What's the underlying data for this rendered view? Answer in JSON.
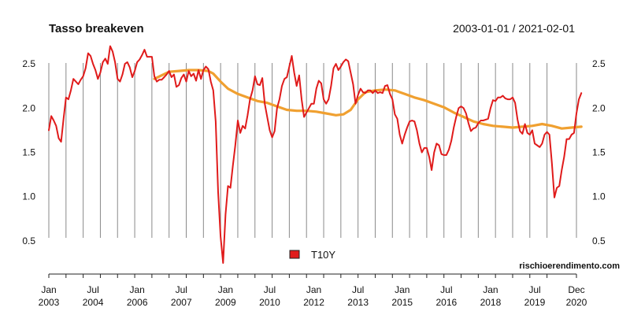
{
  "chart_data": {
    "type": "line",
    "title": "Tasso breakeven",
    "date_range": "2003-01-01 / 2021-02-01",
    "source": "rischioerendimento.com",
    "ylim": [
      0.25,
      2.75
    ],
    "yticks": [
      "0.5",
      "1.0",
      "1.5",
      "2.0",
      "2.5"
    ],
    "x_range": [
      "2003-01",
      "2020-12"
    ],
    "x_tick_labels": [
      {
        "month": "Jan",
        "year": "2003",
        "date": "2003-01"
      },
      {
        "month": "Jul",
        "year": "2004",
        "date": "2004-07"
      },
      {
        "month": "Jan",
        "year": "2006",
        "date": "2006-01"
      },
      {
        "month": "Jul",
        "year": "2007",
        "date": "2007-07"
      },
      {
        "month": "Jan",
        "year": "2009",
        "date": "2009-01"
      },
      {
        "month": "Jul",
        "year": "2010",
        "date": "2010-07"
      },
      {
        "month": "Jan",
        "year": "2012",
        "date": "2012-01"
      },
      {
        "month": "Jul",
        "year": "2013",
        "date": "2013-07"
      },
      {
        "month": "Jan",
        "year": "2015",
        "date": "2015-01"
      },
      {
        "month": "Jul",
        "year": "2016",
        "date": "2016-07"
      },
      {
        "month": "Jan",
        "year": "2018",
        "date": "2018-01"
      },
      {
        "month": "Jul",
        "year": "2019",
        "date": "2019-07"
      },
      {
        "month": "Dec",
        "year": "2020",
        "date": "2020-12"
      }
    ],
    "gridlines": [
      "2003-01",
      "2003-08",
      "2004-03",
      "2004-10",
      "2005-05",
      "2005-12",
      "2006-07",
      "2007-02",
      "2007-09",
      "2008-04",
      "2008-11",
      "2009-06",
      "2010-01",
      "2010-08",
      "2011-03",
      "2011-10",
      "2012-05",
      "2012-12",
      "2013-07",
      "2014-02",
      "2014-09",
      "2015-04",
      "2015-11",
      "2016-06",
      "2017-01",
      "2017-08",
      "2018-03",
      "2018-10",
      "2019-05",
      "2019-12",
      "2020-12"
    ],
    "grid": true,
    "legend_position": "bottom-center",
    "series": [
      {
        "name": "T10Y",
        "color": "#e01b1b",
        "points": [
          [
            "2003-01",
            1.75
          ],
          [
            "2003-02",
            1.91
          ],
          [
            "2003-03",
            1.86
          ],
          [
            "2003-04",
            1.8
          ],
          [
            "2003-05",
            1.66
          ],
          [
            "2003-06",
            1.62
          ],
          [
            "2003-07",
            1.88
          ],
          [
            "2003-08",
            2.12
          ],
          [
            "2003-09",
            2.1
          ],
          [
            "2003-10",
            2.2
          ],
          [
            "2003-11",
            2.33
          ],
          [
            "2003-12",
            2.3
          ],
          [
            "2004-01",
            2.27
          ],
          [
            "2004-02",
            2.32
          ],
          [
            "2004-03",
            2.36
          ],
          [
            "2004-04",
            2.45
          ],
          [
            "2004-05",
            2.62
          ],
          [
            "2004-06",
            2.59
          ],
          [
            "2004-07",
            2.5
          ],
          [
            "2004-08",
            2.43
          ],
          [
            "2004-09",
            2.33
          ],
          [
            "2004-10",
            2.4
          ],
          [
            "2004-11",
            2.52
          ],
          [
            "2004-12",
            2.56
          ],
          [
            "2005-01",
            2.5
          ],
          [
            "2005-02",
            2.7
          ],
          [
            "2005-03",
            2.64
          ],
          [
            "2005-04",
            2.52
          ],
          [
            "2005-05",
            2.33
          ],
          [
            "2005-06",
            2.3
          ],
          [
            "2005-07",
            2.38
          ],
          [
            "2005-08",
            2.5
          ],
          [
            "2005-09",
            2.52
          ],
          [
            "2005-10",
            2.46
          ],
          [
            "2005-11",
            2.35
          ],
          [
            "2005-12",
            2.42
          ],
          [
            "2006-01",
            2.52
          ],
          [
            "2006-02",
            2.55
          ],
          [
            "2006-03",
            2.6
          ],
          [
            "2006-04",
            2.66
          ],
          [
            "2006-05",
            2.58
          ],
          [
            "2006-06",
            2.58
          ],
          [
            "2006-07",
            2.58
          ],
          [
            "2006-08",
            2.36
          ],
          [
            "2006-09",
            2.3
          ],
          [
            "2006-10",
            2.32
          ],
          [
            "2006-11",
            2.32
          ],
          [
            "2006-12",
            2.35
          ],
          [
            "2007-01",
            2.38
          ],
          [
            "2007-02",
            2.42
          ],
          [
            "2007-03",
            2.35
          ],
          [
            "2007-04",
            2.38
          ],
          [
            "2007-05",
            2.24
          ],
          [
            "2007-06",
            2.26
          ],
          [
            "2007-07",
            2.34
          ],
          [
            "2007-08",
            2.38
          ],
          [
            "2007-09",
            2.3
          ],
          [
            "2007-10",
            2.42
          ],
          [
            "2007-11",
            2.36
          ],
          [
            "2007-12",
            2.39
          ],
          [
            "2008-01",
            2.31
          ],
          [
            "2008-02",
            2.43
          ],
          [
            "2008-03",
            2.33
          ],
          [
            "2008-04",
            2.43
          ],
          [
            "2008-05",
            2.47
          ],
          [
            "2008-06",
            2.44
          ],
          [
            "2008-07",
            2.3
          ],
          [
            "2008-08",
            2.2
          ],
          [
            "2008-09",
            1.85
          ],
          [
            "2008-10",
            1.05
          ],
          [
            "2008-11",
            0.55
          ],
          [
            "2008-12",
            0.25
          ],
          [
            "2009-01",
            0.8
          ],
          [
            "2009-02",
            1.12
          ],
          [
            "2009-03",
            1.1
          ],
          [
            "2009-04",
            1.35
          ],
          [
            "2009-05",
            1.58
          ],
          [
            "2009-06",
            1.86
          ],
          [
            "2009-07",
            1.72
          ],
          [
            "2009-08",
            1.8
          ],
          [
            "2009-09",
            1.77
          ],
          [
            "2009-10",
            1.92
          ],
          [
            "2009-11",
            2.1
          ],
          [
            "2009-12",
            2.2
          ],
          [
            "2010-01",
            2.36
          ],
          [
            "2010-02",
            2.27
          ],
          [
            "2010-03",
            2.26
          ],
          [
            "2010-04",
            2.34
          ],
          [
            "2010-05",
            2.05
          ],
          [
            "2010-06",
            1.9
          ],
          [
            "2010-07",
            1.75
          ],
          [
            "2010-08",
            1.67
          ],
          [
            "2010-09",
            1.74
          ],
          [
            "2010-10",
            2.0
          ],
          [
            "2010-11",
            2.1
          ],
          [
            "2010-12",
            2.25
          ],
          [
            "2011-01",
            2.33
          ],
          [
            "2011-02",
            2.35
          ],
          [
            "2011-03",
            2.47
          ],
          [
            "2011-04",
            2.59
          ],
          [
            "2011-05",
            2.4
          ],
          [
            "2011-06",
            2.25
          ],
          [
            "2011-07",
            2.37
          ],
          [
            "2011-08",
            2.1
          ],
          [
            "2011-09",
            1.9
          ],
          [
            "2011-10",
            1.95
          ],
          [
            "2011-11",
            2.0
          ],
          [
            "2011-12",
            2.05
          ],
          [
            "2012-01",
            2.05
          ],
          [
            "2012-02",
            2.22
          ],
          [
            "2012-03",
            2.31
          ],
          [
            "2012-04",
            2.28
          ],
          [
            "2012-05",
            2.1
          ],
          [
            "2012-06",
            2.05
          ],
          [
            "2012-07",
            2.1
          ],
          [
            "2012-08",
            2.25
          ],
          [
            "2012-09",
            2.45
          ],
          [
            "2012-10",
            2.5
          ],
          [
            "2012-11",
            2.43
          ],
          [
            "2012-12",
            2.47
          ],
          [
            "2013-01",
            2.52
          ],
          [
            "2013-02",
            2.55
          ],
          [
            "2013-03",
            2.53
          ],
          [
            "2013-04",
            2.4
          ],
          [
            "2013-05",
            2.27
          ],
          [
            "2013-06",
            2.05
          ],
          [
            "2013-07",
            2.15
          ],
          [
            "2013-08",
            2.22
          ],
          [
            "2013-09",
            2.18
          ],
          [
            "2013-10",
            2.17
          ],
          [
            "2013-11",
            2.2
          ],
          [
            "2013-12",
            2.2
          ],
          [
            "2014-01",
            2.17
          ],
          [
            "2014-02",
            2.2
          ],
          [
            "2014-03",
            2.17
          ],
          [
            "2014-04",
            2.18
          ],
          [
            "2014-05",
            2.17
          ],
          [
            "2014-06",
            2.25
          ],
          [
            "2014-07",
            2.26
          ],
          [
            "2014-08",
            2.16
          ],
          [
            "2014-09",
            2.1
          ],
          [
            "2014-10",
            1.93
          ],
          [
            "2014-11",
            1.88
          ],
          [
            "2014-12",
            1.7
          ],
          [
            "2015-01",
            1.6
          ],
          [
            "2015-02",
            1.7
          ],
          [
            "2015-03",
            1.78
          ],
          [
            "2015-04",
            1.85
          ],
          [
            "2015-05",
            1.86
          ],
          [
            "2015-06",
            1.85
          ],
          [
            "2015-07",
            1.75
          ],
          [
            "2015-08",
            1.6
          ],
          [
            "2015-09",
            1.5
          ],
          [
            "2015-10",
            1.55
          ],
          [
            "2015-11",
            1.55
          ],
          [
            "2015-12",
            1.45
          ],
          [
            "2016-01",
            1.3
          ],
          [
            "2016-02",
            1.5
          ],
          [
            "2016-03",
            1.6
          ],
          [
            "2016-04",
            1.58
          ],
          [
            "2016-05",
            1.48
          ],
          [
            "2016-06",
            1.47
          ],
          [
            "2016-07",
            1.47
          ],
          [
            "2016-08",
            1.53
          ],
          [
            "2016-09",
            1.63
          ],
          [
            "2016-10",
            1.78
          ],
          [
            "2016-11",
            1.9
          ],
          [
            "2016-12",
            2.0
          ],
          [
            "2017-01",
            2.02
          ],
          [
            "2017-02",
            2.0
          ],
          [
            "2017-03",
            1.94
          ],
          [
            "2017-04",
            1.83
          ],
          [
            "2017-05",
            1.74
          ],
          [
            "2017-06",
            1.77
          ],
          [
            "2017-07",
            1.78
          ],
          [
            "2017-08",
            1.83
          ],
          [
            "2017-09",
            1.86
          ],
          [
            "2017-10",
            1.86
          ],
          [
            "2017-11",
            1.87
          ],
          [
            "2017-12",
            1.88
          ],
          [
            "2018-01",
            2.0
          ],
          [
            "2018-02",
            2.09
          ],
          [
            "2018-03",
            2.08
          ],
          [
            "2018-04",
            2.12
          ],
          [
            "2018-05",
            2.12
          ],
          [
            "2018-06",
            2.14
          ],
          [
            "2018-07",
            2.11
          ],
          [
            "2018-08",
            2.1
          ],
          [
            "2018-09",
            2.1
          ],
          [
            "2018-10",
            2.12
          ],
          [
            "2018-11",
            2.06
          ],
          [
            "2018-12",
            1.87
          ],
          [
            "2019-01",
            1.74
          ],
          [
            "2019-02",
            1.71
          ],
          [
            "2019-03",
            1.82
          ],
          [
            "2019-04",
            1.72
          ],
          [
            "2019-05",
            1.7
          ],
          [
            "2019-06",
            1.75
          ],
          [
            "2019-07",
            1.6
          ],
          [
            "2019-08",
            1.58
          ],
          [
            "2019-09",
            1.56
          ],
          [
            "2019-10",
            1.6
          ],
          [
            "2019-11",
            1.7
          ],
          [
            "2019-12",
            1.73
          ],
          [
            "2020-01",
            1.7
          ],
          [
            "2020-02",
            1.38
          ],
          [
            "2020-03",
            0.99
          ],
          [
            "2020-04",
            1.1
          ],
          [
            "2020-05",
            1.12
          ],
          [
            "2020-06",
            1.3
          ],
          [
            "2020-07",
            1.45
          ],
          [
            "2020-08",
            1.65
          ],
          [
            "2020-09",
            1.65
          ],
          [
            "2020-10",
            1.7
          ],
          [
            "2020-11",
            1.72
          ],
          [
            "2020-12",
            1.94
          ],
          [
            "2021-01",
            2.1
          ],
          [
            "2021-02",
            2.17
          ]
        ]
      },
      {
        "name": "",
        "color": "#f0a030",
        "points": [
          [
            "2006-08",
            2.33
          ],
          [
            "2006-11",
            2.37
          ],
          [
            "2007-02",
            2.41
          ],
          [
            "2007-06",
            2.42
          ],
          [
            "2007-10",
            2.43
          ],
          [
            "2008-02",
            2.43
          ],
          [
            "2008-06",
            2.42
          ],
          [
            "2008-08",
            2.39
          ],
          [
            "2008-11",
            2.3
          ],
          [
            "2009-02",
            2.22
          ],
          [
            "2009-06",
            2.16
          ],
          [
            "2009-10",
            2.12
          ],
          [
            "2010-02",
            2.08
          ],
          [
            "2010-06",
            2.06
          ],
          [
            "2010-10",
            2.02
          ],
          [
            "2011-02",
            1.98
          ],
          [
            "2011-06",
            1.97
          ],
          [
            "2011-10",
            1.97
          ],
          [
            "2012-02",
            1.96
          ],
          [
            "2012-06",
            1.94
          ],
          [
            "2012-10",
            1.92
          ],
          [
            "2013-01",
            1.93
          ],
          [
            "2013-04",
            1.98
          ],
          [
            "2013-07",
            2.1
          ],
          [
            "2013-10",
            2.18
          ],
          [
            "2014-02",
            2.2
          ],
          [
            "2014-06",
            2.21
          ],
          [
            "2014-10",
            2.2
          ],
          [
            "2015-02",
            2.16
          ],
          [
            "2015-06",
            2.12
          ],
          [
            "2015-10",
            2.09
          ],
          [
            "2016-02",
            2.05
          ],
          [
            "2016-06",
            2.01
          ],
          [
            "2016-10",
            1.95
          ],
          [
            "2017-02",
            1.9
          ],
          [
            "2017-06",
            1.85
          ],
          [
            "2017-10",
            1.82
          ],
          [
            "2018-02",
            1.8
          ],
          [
            "2018-06",
            1.79
          ],
          [
            "2018-10",
            1.78
          ],
          [
            "2019-02",
            1.79
          ],
          [
            "2019-06",
            1.8
          ],
          [
            "2019-10",
            1.82
          ],
          [
            "2020-02",
            1.8
          ],
          [
            "2020-06",
            1.77
          ],
          [
            "2020-10",
            1.78
          ],
          [
            "2021-02",
            1.79
          ]
        ]
      }
    ]
  }
}
